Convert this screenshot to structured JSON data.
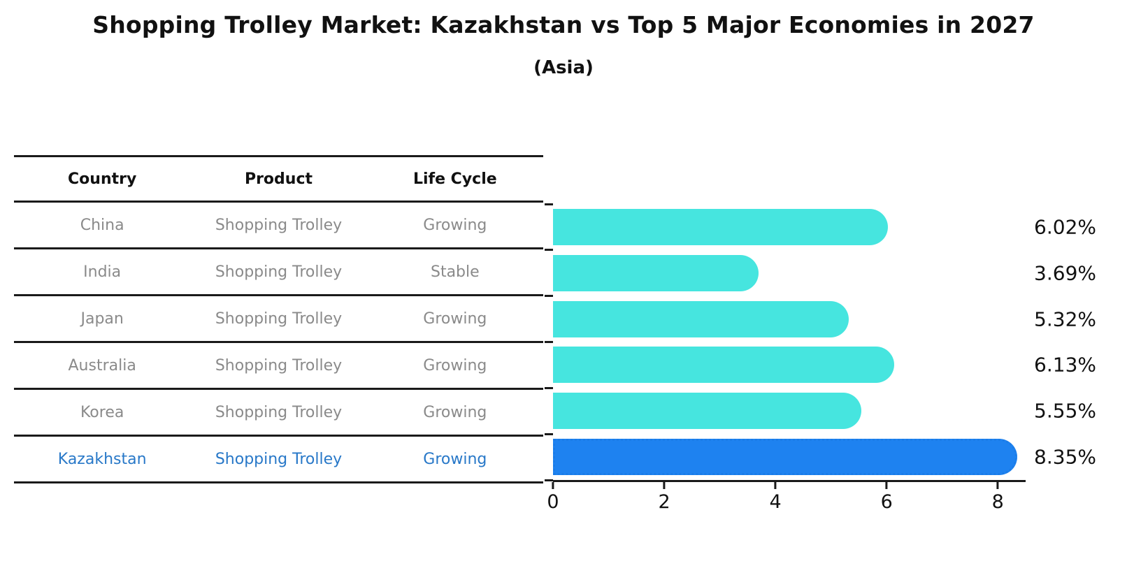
{
  "figure": {
    "title": "Shopping Trolley Market: Kazakhstan vs Top 5 Major Economies in 2027",
    "subtitle": "(Asia)"
  },
  "table": {
    "columns": [
      "Country",
      "Product",
      "Life Cycle"
    ],
    "rows": [
      {
        "country": "China",
        "product": "Shopping Trolley",
        "life_cycle": "Growing"
      },
      {
        "country": "India",
        "product": "Shopping Trolley",
        "life_cycle": "Stable"
      },
      {
        "country": "Japan",
        "product": "Shopping Trolley",
        "life_cycle": "Growing"
      },
      {
        "country": "Australia",
        "product": "Shopping Trolley",
        "life_cycle": "Growing"
      },
      {
        "country": "Korea",
        "product": "Shopping Trolley",
        "life_cycle": "Growing"
      },
      {
        "country": "Kazakhstan",
        "product": "Shopping Trolley",
        "life_cycle": "Growing"
      }
    ],
    "highlight_row": "Kazakhstan"
  },
  "chart_data": {
    "type": "bar",
    "orientation": "horizontal",
    "title": "Shopping Trolley Market: Kazakhstan vs Top 5 Major Economies in 2027",
    "subtitle": "(Asia)",
    "categories": [
      "China",
      "India",
      "Japan",
      "Australia",
      "Korea",
      "Kazakhstan"
    ],
    "values": [
      6.02,
      3.69,
      5.32,
      6.13,
      5.55,
      8.35
    ],
    "value_labels": [
      "6.02%",
      "3.69%",
      "5.32%",
      "6.13%",
      "5.55%",
      "8.35%"
    ],
    "x_ticks": [
      "0",
      "2",
      "4",
      "6",
      "8"
    ],
    "x_tick_values": [
      0,
      2,
      4,
      6,
      8
    ],
    "xlim": [
      0,
      8.5
    ],
    "grid": false,
    "legend": false,
    "highlight_index": 5,
    "colors": {
      "bar": "#46e5df",
      "highlight_bar": "#1e82f0",
      "highlight_border": "#1a7ce8",
      "highlight_text": "#2878c8",
      "row_text": "#8a8a8a",
      "heading_text": "#111111",
      "axis": "#1a1a1a"
    }
  }
}
